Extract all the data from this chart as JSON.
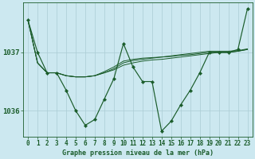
{
  "title": "Graphe pression niveau de la mer (hPa)",
  "bg_color": "#cce8f0",
  "line_color": "#1a5c2a",
  "grid_color": "#aaccd4",
  "x_ticks": [
    0,
    1,
    2,
    3,
    4,
    5,
    6,
    7,
    8,
    9,
    10,
    11,
    12,
    13,
    14,
    15,
    16,
    17,
    18,
    19,
    20,
    21,
    22,
    23
  ],
  "y_ticks": [
    1036,
    1037
  ],
  "ylim": [
    1035.55,
    1037.85
  ],
  "xlim": [
    -0.5,
    23.5
  ],
  "smooth_lines": [
    [
      1037.55,
      1036.82,
      1036.65,
      1036.65,
      1036.6,
      1036.58,
      1036.58,
      1036.6,
      1036.65,
      1036.7,
      1036.78,
      1036.82,
      1036.85,
      1036.87,
      1036.88,
      1036.9,
      1036.92,
      1036.94,
      1036.96,
      1036.98,
      1037.0,
      1037.0,
      1037.02,
      1037.05
    ],
    [
      1037.55,
      1036.82,
      1036.65,
      1036.65,
      1036.6,
      1036.58,
      1036.58,
      1036.6,
      1036.67,
      1036.75,
      1036.85,
      1036.88,
      1036.9,
      1036.91,
      1036.92,
      1036.93,
      1036.95,
      1036.96,
      1036.98,
      1037.0,
      1037.0,
      1037.0,
      1037.02,
      1037.05
    ],
    [
      1037.55,
      1036.82,
      1036.65,
      1036.65,
      1036.6,
      1036.58,
      1036.58,
      1036.6,
      1036.65,
      1036.72,
      1036.82,
      1036.86,
      1036.88,
      1036.9,
      1036.92,
      1036.94,
      1036.96,
      1036.98,
      1037.0,
      1037.02,
      1037.02,
      1037.02,
      1037.03,
      1037.06
    ]
  ],
  "jagged_line": [
    1037.55,
    1037.0,
    1036.65,
    1036.65,
    1036.35,
    1036.0,
    1035.75,
    1035.85,
    1036.2,
    1036.55,
    1037.15,
    1036.75,
    1036.5,
    1036.5,
    1035.65,
    1035.82,
    1036.1,
    1036.35,
    1036.65,
    1037.0,
    1037.0,
    1037.0,
    1037.05,
    1037.75
  ],
  "title_fontsize": 6.0,
  "tick_fontsize": 5.5,
  "ytick_fontsize": 6.5
}
